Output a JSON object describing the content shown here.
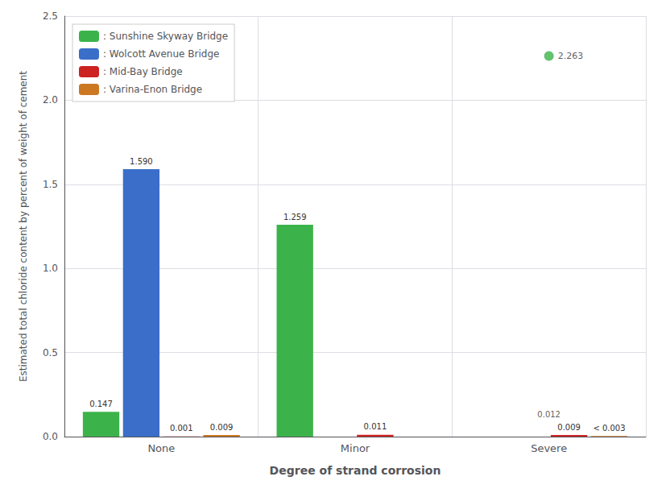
{
  "chart_data": {
    "type": "bar",
    "categories": [
      "None",
      "Minor",
      "Severe"
    ],
    "series": [
      {
        "name": ": Sunshine Skyway Bridge",
        "color": "#3CB34A",
        "values": [
          0.147,
          1.259,
          null
        ],
        "value_labels": [
          "0.147",
          "1.259",
          null
        ]
      },
      {
        "name": ": Wolcott Avenue Bridge",
        "color": "#3A6EC8",
        "values": [
          1.59,
          null,
          null
        ],
        "value_labels": [
          "1.590",
          null,
          null
        ]
      },
      {
        "name": ": Mid-Bay Bridge",
        "color": "#CC2222",
        "values": [
          0.001,
          0.011,
          0.009
        ],
        "value_labels": [
          "0.001",
          "0.011",
          "0.009"
        ]
      },
      {
        "name": ": Varina-Enon Bridge",
        "color": "#CC7722",
        "values": [
          0.009,
          null,
          0.003
        ],
        "value_labels": [
          "0.009",
          null,
          "< 0.003"
        ]
      },
      {
        "type": "scatter",
        "color": "#3CB34A",
        "marker": "circle",
        "values": [
          null,
          null,
          2.263
        ]
      }
    ],
    "annotations": [
      {
        "text": "0.012",
        "category": "Severe",
        "y": 0.012
      }
    ],
    "xlabel": "Degree of strand corrosion",
    "ylabel": "Estimated total chloride content by percent of weight of cement",
    "ylim": [
      0,
      2.5
    ],
    "yticks": [
      {
        "value": 0,
        "label": "0.0"
      },
      0.5,
      {
        "value": 1,
        "label": "1.0"
      },
      1.5,
      {
        "value": 2,
        "label": "2.0"
      },
      2.5
    ],
    "grid": true,
    "legend": "upper left",
    "data_labels": true
  }
}
